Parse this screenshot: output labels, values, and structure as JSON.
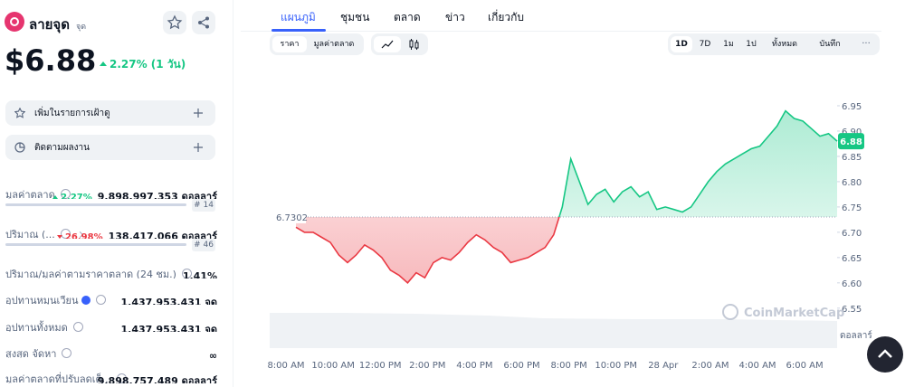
{
  "coin": {
    "name": "ลายจุด",
    "symbol": "จุด",
    "price": "$6.88",
    "change": "2.27% (1 วัน)"
  },
  "actions": [
    "เพิ่มในรายการเฝ้าดู",
    "ติดตามผลงาน"
  ],
  "stats": [
    {
      "label": "มูลค่าตลาด",
      "change": "2.27%",
      "direction": "up",
      "value": "9,898,997,353 ดอลลาร์",
      "rank": "# 14"
    },
    {
      "label": "ปริมาณ (...",
      "change": "26.98%",
      "direction": "down",
      "value": "138,417,066 ดอลลาร์",
      "rank": "# 46"
    },
    {
      "label": "ปริมาณ/มูลค่าตามราคาตลาด (24 ชม.)",
      "value": "1.41%"
    },
    {
      "label": "อุปทานหมุนเวียน",
      "value": "1,437,953,431 จุด"
    },
    {
      "label": "อุปทานทั้งหมด",
      "value": "1,437,953,431 จุด"
    },
    {
      "label": "สูงสุด จัดหา",
      "value": "∞"
    },
    {
      "label": "มูลค่าตลาดที่ปรับลดเต็...",
      "value": "9,898,757,489 ดอลลาร์"
    }
  ],
  "tabs": [
    "แผนภูมิ",
    "ชุมชน",
    "ตลาด",
    "ข่าว",
    "เกี่ยวกับ"
  ],
  "toolbar": {
    "modes": [
      "ราคา",
      "มูลค่าตลาด"
    ],
    "ranges": [
      "1D",
      "7D",
      "1ม",
      "1ป",
      "ทั้งหมด",
      "บันทึก"
    ],
    "more": "···"
  },
  "chart_data": {
    "type": "line",
    "series": [
      {
        "name": "ราคา",
        "up_color": "#16c784",
        "down_color": "#ea3943",
        "values": [
          6.71,
          6.7,
          6.7,
          6.69,
          6.68,
          6.655,
          6.64,
          6.655,
          6.675,
          6.665,
          6.65,
          6.625,
          6.615,
          6.6,
          6.62,
          6.61,
          6.64,
          6.65,
          6.645,
          6.66,
          6.68,
          6.695,
          6.685,
          6.67,
          6.66,
          6.64,
          6.645,
          6.65,
          6.66,
          6.67,
          6.695,
          6.75,
          6.845,
          6.8,
          6.755,
          6.775,
          6.785,
          6.76,
          6.78,
          6.79,
          6.77,
          6.78,
          6.745,
          6.75,
          6.745,
          6.74,
          6.75,
          6.775,
          6.8,
          6.82,
          6.835,
          6.845,
          6.855,
          6.865,
          6.87,
          6.89,
          6.91,
          6.94,
          6.925,
          6.92,
          6.905,
          6.89,
          6.895,
          6.88
        ]
      }
    ],
    "baseline": 6.7302,
    "last_price": 6.88,
    "ylim": [
      6.53,
      7.0
    ],
    "yticks": [
      6.55,
      {
        "value": 6.6,
        "label": "6.60"
      },
      6.65,
      {
        "value": 6.7,
        "label": "6.70"
      },
      6.75,
      {
        "value": 6.8,
        "label": "6.80"
      },
      6.85,
      {
        "value": 6.9,
        "label": "6.90"
      },
      6.95
    ],
    "y_unit": "ดอลลาร์",
    "xticks": [
      "8:00 AM",
      "10:00 AM",
      "12:00 PM",
      "2:00 PM",
      "4:00 PM",
      "6:00 PM",
      "8:00 PM",
      "10:00 PM",
      "28 Apr",
      "2:00 AM",
      "4:00 AM",
      "6:00 AM"
    ],
    "watermark": "CoinMarketCap"
  }
}
